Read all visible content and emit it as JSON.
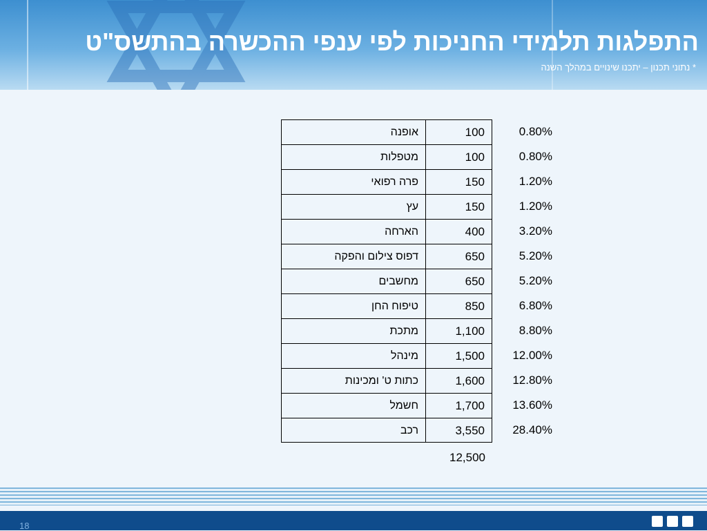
{
  "header": {
    "title": "התפלגות תלמידי החניכות לפי ענפי ההכשרה בהתשס\"ט",
    "subtitle": "* נתוני תכנון – יתכנו שינויים במהלך השנה"
  },
  "table": {
    "rows": [
      [
        "אופנה",
        "100",
        "0.80%"
      ],
      [
        "מטפלות",
        "100",
        "0.80%"
      ],
      [
        "פרה רפואי",
        "150",
        "1.20%"
      ],
      [
        "עץ",
        "150",
        "1.20%"
      ],
      [
        "הארחה",
        "400",
        "3.20%"
      ],
      [
        "דפוס צילום והפקה",
        "650",
        "5.20%"
      ],
      [
        "מחשבים",
        "650",
        "5.20%"
      ],
      [
        "טיפוח החן",
        "850",
        "6.80%"
      ],
      [
        "מתכת",
        "1,100",
        "8.80%"
      ],
      [
        "מינהל",
        "1,500",
        "12.00%"
      ],
      [
        "כתות ט' ומכינות",
        "1,600",
        "12.80%"
      ],
      [
        "חשמל",
        "1,700",
        "13.60%"
      ],
      [
        "רכב",
        "3,550",
        "28.40%"
      ]
    ],
    "total": "12,500"
  },
  "footer": {
    "page_number": "18"
  }
}
